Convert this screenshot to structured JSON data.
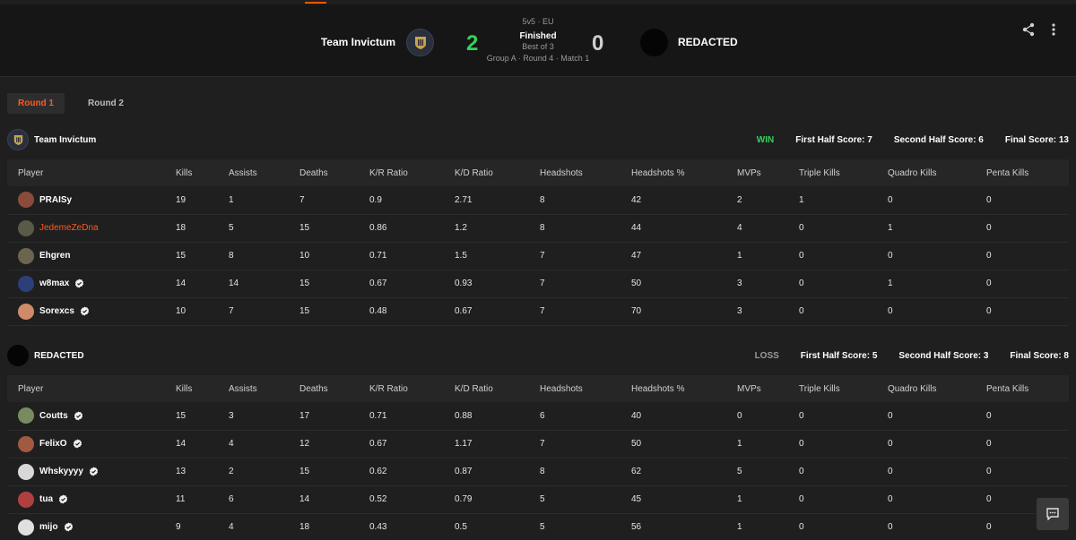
{
  "match": {
    "mode": "5v5 · EU",
    "status": "Finished",
    "best_of": "Best of 3",
    "stage": "Group A · Round 4 · Match 1",
    "team1": {
      "name": "Team Invictum",
      "score": "2"
    },
    "team2": {
      "name": "REDACTED",
      "score": "0"
    }
  },
  "icons": {
    "share": "share-icon",
    "more": "more-vertical-icon",
    "chat": "chat-icon",
    "verified": "verified-check-icon"
  },
  "colors": {
    "accent": "#ff5a1f",
    "win": "#32d35a",
    "background": "#1f1f1f"
  },
  "tabs": [
    {
      "label": "Round 1",
      "active": true
    },
    {
      "label": "Round 2",
      "active": false
    }
  ],
  "columns": [
    "Player",
    "Kills",
    "Assists",
    "Deaths",
    "K/R Ratio",
    "K/D Ratio",
    "Headshots",
    "Headshots %",
    "MVPs",
    "Triple Kills",
    "Quadro Kills",
    "Penta Kills"
  ],
  "teams": [
    {
      "name": "Team Invictum",
      "result": "WIN",
      "first_half": "First Half Score: 7",
      "second_half": "Second Half Score: 6",
      "final": "Final Score: 13",
      "players": [
        {
          "name": "PRAISy",
          "verified": false,
          "highlight": false,
          "avatar": "#8a4b3a",
          "stats": [
            "19",
            "1",
            "7",
            "0.9",
            "2.71",
            "8",
            "42",
            "2",
            "1",
            "0",
            "0"
          ]
        },
        {
          "name": "JedemeZeDna",
          "verified": false,
          "highlight": true,
          "avatar": "#5a5a48",
          "stats": [
            "18",
            "5",
            "15",
            "0.86",
            "1.2",
            "8",
            "44",
            "4",
            "0",
            "1",
            "0"
          ]
        },
        {
          "name": "Ehgren",
          "verified": false,
          "highlight": false,
          "avatar": "#6b6550",
          "stats": [
            "15",
            "8",
            "10",
            "0.71",
            "1.5",
            "7",
            "47",
            "1",
            "0",
            "0",
            "0"
          ]
        },
        {
          "name": "w8max",
          "verified": true,
          "highlight": false,
          "avatar": "#2d3f7a",
          "stats": [
            "14",
            "14",
            "15",
            "0.67",
            "0.93",
            "7",
            "50",
            "3",
            "0",
            "1",
            "0"
          ]
        },
        {
          "name": "Sorexcs",
          "verified": true,
          "highlight": false,
          "avatar": "#d08a6a",
          "stats": [
            "10",
            "7",
            "15",
            "0.48",
            "0.67",
            "7",
            "70",
            "3",
            "0",
            "0",
            "0"
          ]
        }
      ]
    },
    {
      "name": "REDACTED",
      "result": "LOSS",
      "first_half": "First Half Score: 5",
      "second_half": "Second Half Score: 3",
      "final": "Final Score: 8",
      "players": [
        {
          "name": "Coutts",
          "verified": true,
          "highlight": false,
          "avatar": "#7a8a60",
          "stats": [
            "15",
            "3",
            "17",
            "0.71",
            "0.88",
            "6",
            "40",
            "0",
            "0",
            "0",
            "0"
          ]
        },
        {
          "name": "FelixO",
          "verified": true,
          "highlight": false,
          "avatar": "#a05a40",
          "stats": [
            "14",
            "4",
            "12",
            "0.67",
            "1.17",
            "7",
            "50",
            "1",
            "0",
            "0",
            "0"
          ]
        },
        {
          "name": "Whskyyyy",
          "verified": true,
          "highlight": false,
          "avatar": "#d8d8d8",
          "stats": [
            "13",
            "2",
            "15",
            "0.62",
            "0.87",
            "8",
            "62",
            "5",
            "0",
            "0",
            "0"
          ]
        },
        {
          "name": "tua",
          "verified": true,
          "highlight": false,
          "avatar": "#b04040",
          "stats": [
            "11",
            "6",
            "14",
            "0.52",
            "0.79",
            "5",
            "45",
            "1",
            "0",
            "0",
            "0"
          ]
        },
        {
          "name": "mijo",
          "verified": true,
          "highlight": false,
          "avatar": "#e0e0e0",
          "stats": [
            "9",
            "4",
            "18",
            "0.43",
            "0.5",
            "5",
            "56",
            "1",
            "0",
            "0",
            "0"
          ]
        }
      ]
    }
  ]
}
